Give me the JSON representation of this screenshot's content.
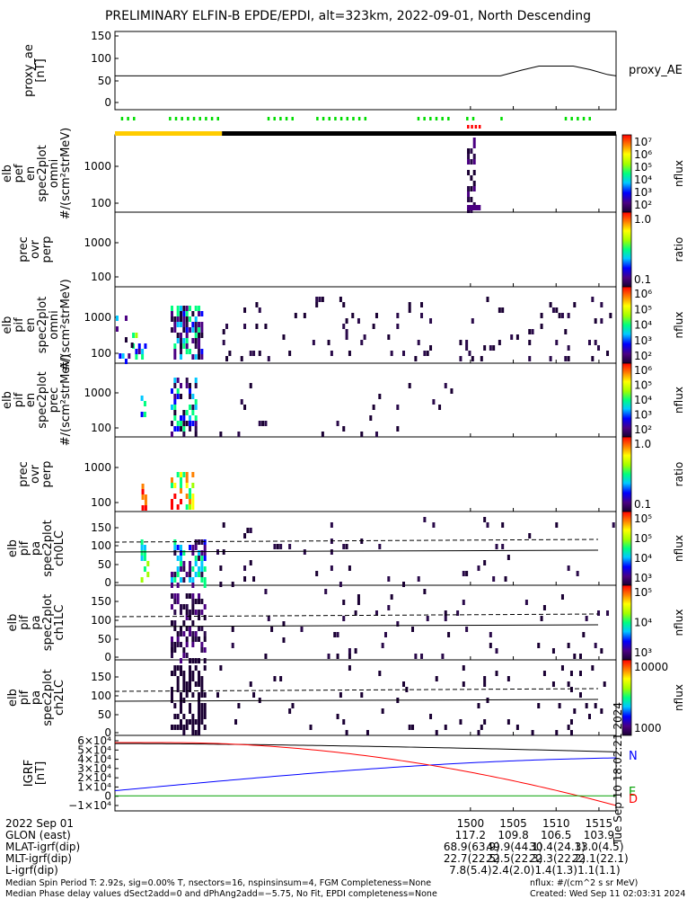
{
  "title": "PRELIMINARY ELFIN-B EPDE/EPDI, alt=323km, 2022-09-01, North Descending",
  "chart_data": {
    "type": "multi-panel",
    "panels": [
      {
        "id": "proxy_ae",
        "ylabel": [
          "proxy_ae",
          "[nT]"
        ],
        "yticks": [
          "150",
          "100",
          "50",
          "0"
        ],
        "legend": "proxy_AE",
        "series": [
          {
            "name": "proxy_AE",
            "x": [
              "1458.5",
              "1503.5",
              "1506",
              "1508",
              "1510",
              "1512",
              "1514",
              "1516",
              "1517"
            ],
            "y": [
              60,
              60,
              73,
              82,
              82,
              82,
              74,
              63,
              60
            ]
          }
        ]
      },
      {
        "id": "elb_pef_en",
        "ylabel": [
          "elb",
          "pef",
          "en",
          "spec2plot",
          "omni",
          "#/(scm²strMeV)"
        ],
        "yticks": [
          "1000",
          "100"
        ],
        "cbar": {
          "label": "nflux",
          "ticks": [
            "10⁷",
            "10⁶",
            "10⁵",
            "10⁴",
            "10³",
            "10²"
          ]
        }
      },
      {
        "id": "prec_ovr_perp_e",
        "ylabel": [
          "prec",
          "ovr",
          "perp"
        ],
        "yticks": [
          "1000",
          "100"
        ],
        "cbar": {
          "label": "ratio",
          "ticks": [
            "1.0",
            "0.1"
          ]
        }
      },
      {
        "id": "elb_pif_en",
        "ylabel": [
          "elb",
          "pif",
          "en",
          "spec2plot",
          "omni",
          "#/(scm²strMeV)"
        ],
        "yticks": [
          "1000",
          "100"
        ],
        "cbar": {
          "label": "nflux",
          "ticks": [
            "10⁶",
            "10⁵",
            "10⁴",
            "10³",
            "10²"
          ]
        }
      },
      {
        "id": "elb_pif_prec",
        "ylabel": [
          "elb",
          "pif",
          "en",
          "spec2plot",
          "prec",
          "#/(scm²strMeV)"
        ],
        "yticks": [
          "1000",
          "100"
        ],
        "cbar": {
          "label": "nflux",
          "ticks": [
            "10⁶",
            "10⁵",
            "10⁴",
            "10³",
            "10²"
          ]
        }
      },
      {
        "id": "prec_ovr_perp_i",
        "ylabel": [
          "prec",
          "ovr",
          "perp"
        ],
        "yticks": [
          "1000",
          "100"
        ],
        "cbar": {
          "label": "ratio",
          "ticks": [
            "1.0",
            "0.1"
          ]
        }
      },
      {
        "id": "pa_ch0",
        "ylabel": [
          "elb",
          "pif",
          "pa",
          "spec2plot",
          "ch0LC"
        ],
        "yticks": [
          "150",
          "100",
          "50",
          "0"
        ],
        "cbar": {
          "label": "nflux",
          "ticks": [
            "10⁵",
            "10⁵",
            "10⁴",
            "10³"
          ]
        }
      },
      {
        "id": "pa_ch1",
        "ylabel": [
          "elb",
          "pif",
          "pa",
          "spec2plot",
          "ch1LC"
        ],
        "yticks": [
          "150",
          "100",
          "50",
          "0"
        ],
        "cbar": {
          "label": "nflux",
          "ticks": [
            "10⁵",
            "10⁴",
            "10³"
          ]
        }
      },
      {
        "id": "pa_ch2",
        "ylabel": [
          "elb",
          "pif",
          "pa",
          "spec2plot",
          "ch2LC"
        ],
        "yticks": [
          "150",
          "100",
          "50",
          "0"
        ],
        "cbar": {
          "label": "nflux",
          "ticks": [
            "10000",
            "1000"
          ]
        }
      },
      {
        "id": "igrf",
        "ylabel": [
          "IGRF",
          "[nT]"
        ],
        "yticks": [
          "6×10⁴",
          "5×10⁴",
          "4×10⁴",
          "3×10⁴",
          "2×10⁴",
          "1×10⁴",
          "0",
          "−1×10⁴"
        ],
        "legend_labels": [
          "N",
          "E",
          "D"
        ],
        "series": [
          {
            "name": "N",
            "color": "#0000ff"
          },
          {
            "name": "E",
            "color": "#00a000"
          },
          {
            "name": "D",
            "color": "#ff0000"
          }
        ]
      }
    ],
    "xticks": [
      "1500",
      "1505",
      "1510",
      "1515"
    ]
  },
  "table": {
    "rows": [
      [
        "2022 Sep 01",
        "1500",
        "1505",
        "1510",
        "1515"
      ],
      [
        "GLON (east)",
        "117.2",
        "109.8",
        "106.5",
        "103.9"
      ],
      [
        "MLAT-igrf(dip)",
        "68.9(63.9)",
        "49.9(44.1)",
        "30.4(24.3)",
        "13.0(4.5)"
      ],
      [
        "MLT-igrf(dip)",
        "22.7(22.5)",
        "22.5(22.3)",
        "22.3(22.2)",
        "22.1(22.1)"
      ],
      [
        "L-igrf(dip)",
        "7.8(5.4)",
        "2.4(2.0)",
        "1.4(1.3)",
        "1.1(1.1)"
      ]
    ]
  },
  "footer": {
    "line1": "Median Spin Period T: 2.92s, sig=0.00% T, nsectors=16, nspinsinsum=4, FGM Completeness=None",
    "line2": "Median Phase delay values dSect2add=0 and dPhAng2add=−5.75, No Fit, EPDI completeness=None",
    "units": "nflux: #/(cm^2 s sr MeV)",
    "created": "Created: Wed Sep 11 02:03:31 2024",
    "stamp": "Tue Sep 10 18:02:21 2024"
  },
  "colors": {
    "accent": "#ffcc00",
    "lc_dashed": "#000000",
    "igrf_total": "#000000"
  }
}
